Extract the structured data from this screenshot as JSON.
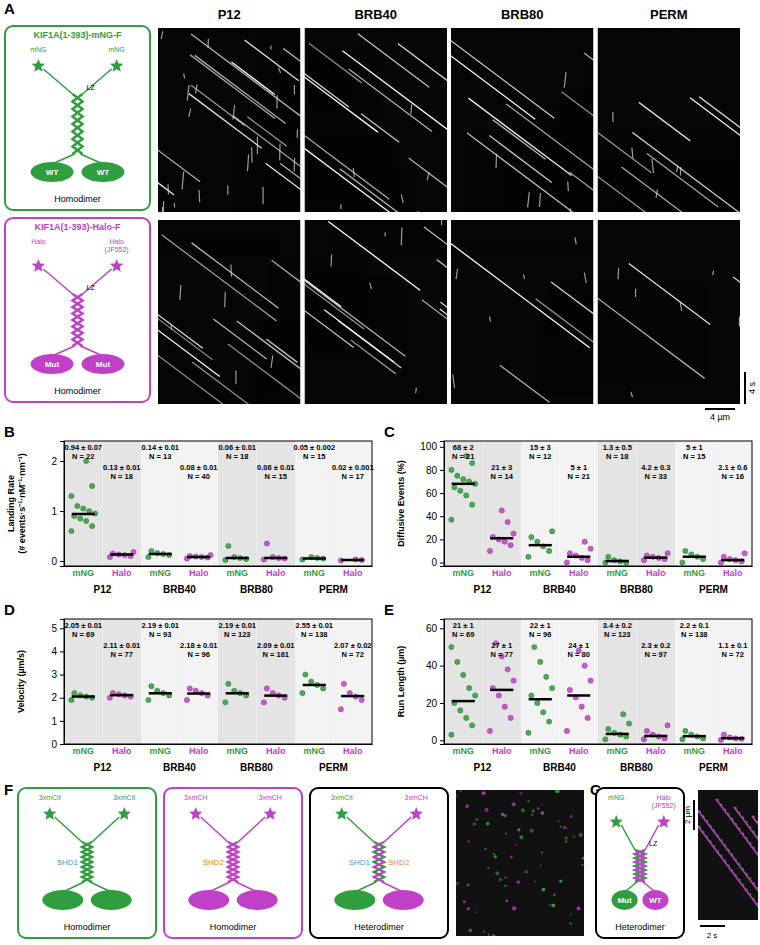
{
  "chart_data": [
    {
      "type": "scatter",
      "y_label": [
        "Landing Rate",
        "(# events·s⁻¹·nM⁻¹·nm⁻¹)"
      ],
      "categories": [
        "mNG",
        "Halo",
        "mNG",
        "Halo",
        "mNG",
        "Halo",
        "mNG",
        "Halo"
      ],
      "groups": [
        "P12",
        "BRB40",
        "BRB80",
        "PERM"
      ],
      "colors": [
        "#2e9e3e",
        "#c040c8",
        "#2e9e3e",
        "#c040c8",
        "#2e9e3e",
        "#c040c8",
        "#2e9e3e",
        "#c040c8"
      ],
      "values": [
        0.94,
        0.13,
        0.14,
        0.08,
        0.06,
        0.06,
        0.05,
        0.02
      ],
      "value_labels": [
        "0.94 ± 0.07",
        "0.13 ± 0.01",
        "0.14 ± 0.01",
        "0.08 ± 0.01",
        "0.06 ± 0.01",
        "0.06 ± 0.01",
        "0.05 ± 0.002",
        "0.02 ± 0.001"
      ],
      "n_labels": [
        "N = 22",
        "N = 18",
        "N = 13",
        "N = 40",
        "N = 18",
        "N = 15",
        "N = 15",
        "N = 17"
      ],
      "points": [
        [
          0.6,
          0.7,
          0.8,
          0.85,
          0.9,
          0.95,
          1.0,
          1.05,
          1.1,
          1.3,
          1.5,
          2.0
        ],
        [
          0.08,
          0.1,
          0.12,
          0.13,
          0.15,
          0.18
        ],
        [
          0.08,
          0.12,
          0.14,
          0.16,
          0.2
        ],
        [
          0.05,
          0.07,
          0.08,
          0.09,
          0.1,
          0.12
        ],
        [
          0.02,
          0.04,
          0.06,
          0.08,
          0.3
        ],
        [
          0.03,
          0.05,
          0.06,
          0.08,
          0.35
        ],
        [
          0.03,
          0.05,
          0.06,
          0.08
        ],
        [
          0.01,
          0.02,
          0.03
        ]
      ],
      "ylim": [
        -0.1,
        2.4
      ],
      "yticks": [
        0,
        1,
        2
      ]
    },
    {
      "type": "scatter",
      "y_label": [
        "Diffusive Events (%)"
      ],
      "categories": [
        "mNG",
        "Halo",
        "mNG",
        "Halo",
        "mNG",
        "Halo",
        "mNG",
        "Halo"
      ],
      "groups": [
        "P12",
        "BRB40",
        "BRB80",
        "PERM"
      ],
      "colors": [
        "#2e9e3e",
        "#c040c8",
        "#2e9e3e",
        "#c040c8",
        "#2e9e3e",
        "#c040c8",
        "#2e9e3e",
        "#c040c8"
      ],
      "values": [
        68,
        21,
        15,
        5,
        1.3,
        4.2,
        5,
        2.1
      ],
      "value_labels": [
        "68 ± 2",
        "21 ± 3",
        "15 ± 3",
        "5 ± 1",
        "1.3 ± 0.5",
        "4.2 ± 0.3",
        "5 ± 1",
        "2.1 ± 0.6"
      ],
      "n_labels": [
        "N = 21",
        "N = 14",
        "N = 12",
        "N = 21",
        "N = 18",
        "N = 33",
        "N = 15",
        "N = 16"
      ],
      "points": [
        [
          37,
          50,
          58,
          62,
          65,
          68,
          70,
          72,
          75,
          80,
          86,
          92
        ],
        [
          10,
          15,
          18,
          20,
          22,
          25,
          35,
          45
        ],
        [
          5,
          10,
          14,
          18,
          22,
          27
        ],
        [
          0,
          2,
          4,
          6,
          8,
          12,
          18
        ],
        [
          0,
          0,
          1,
          2,
          5
        ],
        [
          2,
          3,
          4,
          5,
          6,
          8
        ],
        [
          0,
          3,
          5,
          7,
          10
        ],
        [
          0,
          1,
          2,
          3,
          5,
          8
        ]
      ],
      "ylim": [
        -3,
        105
      ],
      "yticks": [
        0,
        20,
        40,
        60,
        80,
        100
      ]
    },
    {
      "type": "scatter",
      "y_label": [
        "Velocity (µm/s)"
      ],
      "categories": [
        "mNG",
        "Halo",
        "mNG",
        "Halo",
        "mNG",
        "Halo",
        "mNG",
        "Halo"
      ],
      "groups": [
        "P12",
        "BRB40",
        "BRB80",
        "PERM"
      ],
      "colors": [
        "#2e9e3e",
        "#c040c8",
        "#2e9e3e",
        "#c040c8",
        "#2e9e3e",
        "#c040c8",
        "#2e9e3e",
        "#c040c8"
      ],
      "values": [
        2.05,
        2.11,
        2.19,
        2.18,
        2.19,
        2.09,
        2.55,
        2.07
      ],
      "value_labels": [
        "2.05 ± 0.01",
        "2.11 ± 0.01",
        "2.19 ± 0.01",
        "2.18 ± 0.01",
        "2.19 ± 0.01",
        "2.09 ± 0.01",
        "2.55 ± 0.01",
        "2.07 ± 0.02"
      ],
      "n_labels": [
        "N = 69",
        "N = 77",
        "N = 93",
        "N = 96",
        "N = 123",
        "N = 161",
        "N = 138",
        "N = 72"
      ],
      "points": [
        [
          1.9,
          2.0,
          2.05,
          2.1,
          2.2
        ],
        [
          2.0,
          2.05,
          2.1,
          2.15,
          2.2
        ],
        [
          1.9,
          2.1,
          2.2,
          2.3,
          2.5
        ],
        [
          1.9,
          2.1,
          2.2,
          2.3,
          2.4
        ],
        [
          1.8,
          2.1,
          2.2,
          2.3,
          2.6
        ],
        [
          1.8,
          2.0,
          2.1,
          2.2,
          2.4
        ],
        [
          2.2,
          2.4,
          2.55,
          2.7,
          3.0
        ],
        [
          1.5,
          1.9,
          2.05,
          2.2,
          2.6
        ]
      ],
      "ylim": [
        0,
        5.4
      ],
      "yticks": [
        0,
        1,
        2,
        3,
        4,
        5
      ]
    },
    {
      "type": "scatter",
      "y_label": [
        "Run Length (µm)"
      ],
      "categories": [
        "mNG",
        "Halo",
        "mNG",
        "Halo",
        "mNG",
        "Halo",
        "mNG",
        "Halo"
      ],
      "groups": [
        "P12",
        "BRB40",
        "BRB80",
        "PERM"
      ],
      "colors": [
        "#2e9e3e",
        "#c040c8",
        "#2e9e3e",
        "#c040c8",
        "#2e9e3e",
        "#c040c8",
        "#2e9e3e",
        "#c040c8"
      ],
      "values": [
        21,
        27,
        22,
        24,
        3.4,
        2.3,
        2.2,
        1.1
      ],
      "value_labels": [
        "21 ± 1",
        "27 ± 1",
        "22 ± 1",
        "24 ± 1",
        "3.4 ± 0.2",
        "2.3 ± 0.2",
        "2.2 ± 0.1",
        "1.1 ± 0.1"
      ],
      "n_labels": [
        "N = 69",
        "N = 77",
        "N = 96",
        "N = 80",
        "N = 123",
        "N = 97",
        "N = 138",
        "N = 72"
      ],
      "points": [
        [
          3,
          8,
          12,
          16,
          20,
          24,
          28,
          35,
          42,
          50
        ],
        [
          5,
          12,
          18,
          24,
          28,
          32,
          38,
          45,
          52
        ],
        [
          4,
          10,
          15,
          20,
          24,
          28,
          34,
          42,
          50
        ],
        [
          5,
          12,
          18,
          23,
          27,
          32,
          40,
          48
        ],
        [
          0.5,
          2,
          3,
          4,
          6,
          9,
          14
        ],
        [
          0.5,
          1,
          2,
          3,
          5,
          8
        ],
        [
          0.5,
          1,
          2,
          3,
          5
        ],
        [
          0.2,
          0.8,
          1,
          1.5,
          3
        ]
      ],
      "ylim": [
        -2,
        65
      ],
      "yticks": [
        0,
        20,
        40,
        60
      ]
    }
  ],
  "figure": {
    "panel_labels": [
      "A",
      "B",
      "C",
      "D",
      "E",
      "F",
      "G"
    ],
    "kymograph": {
      "columns": [
        "P12",
        "BRB40",
        "BRB80",
        "PERM"
      ],
      "scale_x": "4 µm",
      "scale_t": "4 s"
    },
    "schematics": {
      "mng": {
        "title": "KIF1A(1-393)-mNG-F",
        "tag": "mNG",
        "lz": "LZ",
        "head": "WT",
        "label": "Homodimer"
      },
      "halo": {
        "title": "KIF1A(1-393)-Halo-F",
        "tag": "Halo",
        "dye": "(JF552)",
        "lz": "LZ",
        "head": "Mut",
        "label": "Homodimer"
      },
      "f": [
        {
          "tag": "3xmCit",
          "domain": "SHD1",
          "label": "Homodimer"
        },
        {
          "tag": "3xmCH",
          "domain": "SHD2",
          "label": "Homodimer"
        },
        {
          "tag_left": "3xmCit",
          "tag_right": "3xmCH",
          "domain_left": "SHD1",
          "domain_right": "SHD2",
          "label": "Heterodimer"
        }
      ],
      "g": {
        "tag_left": "mNG",
        "tag_right": "Halo",
        "dye": "(JF552)",
        "lz": "LZ",
        "head_left": "Mut",
        "head_right": "WT",
        "label": "Heterodimer",
        "scale_x": "2 s",
        "scale_y": "2 µm"
      }
    }
  }
}
